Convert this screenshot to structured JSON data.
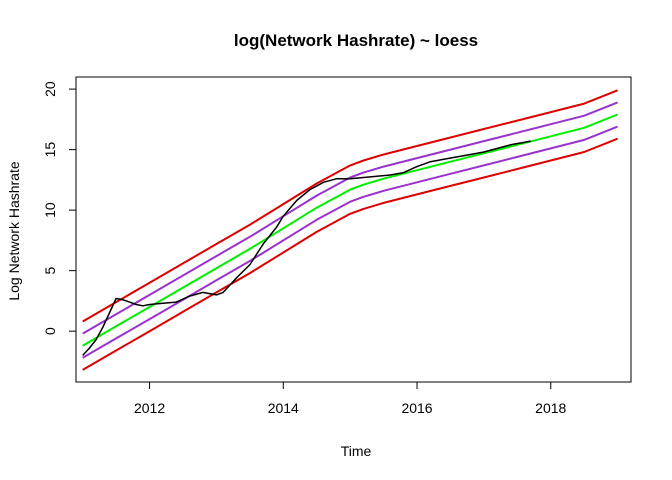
{
  "chart_data": {
    "type": "line",
    "title": "log(Network Hashrate) ~ loess",
    "xlabel": "Time",
    "ylabel": "Log Network Hashrate",
    "xlim": [
      2010.9,
      2019.2
    ],
    "ylim": [
      -4.2,
      21.0
    ],
    "xticks": [
      2012,
      2014,
      2016,
      2018
    ],
    "yticks": [
      0,
      5,
      10,
      15,
      20
    ],
    "grid": false,
    "legend": "none",
    "colors": {
      "observed": "#000000",
      "fit": "#00ee00",
      "inner_band": "#9a32cd",
      "outer_band": "#dd0000"
    },
    "x": [
      2011.0,
      2011.5,
      2012.0,
      2012.5,
      2013.0,
      2013.5,
      2014.0,
      2014.5,
      2015.0,
      2015.2,
      2015.5,
      2016.0,
      2016.5,
      2017.0,
      2017.5,
      2018.0,
      2018.5,
      2019.0
    ],
    "series": [
      {
        "role": "outer_upper",
        "values": [
          0.8,
          2.4,
          4.0,
          5.6,
          7.2,
          8.8,
          10.5,
          12.2,
          13.7,
          14.1,
          14.6,
          15.3,
          16.0,
          16.7,
          17.4,
          18.1,
          18.8,
          19.9
        ]
      },
      {
        "role": "inner_upper",
        "values": [
          -0.2,
          1.4,
          3.0,
          4.6,
          6.2,
          7.8,
          9.5,
          11.2,
          12.7,
          13.1,
          13.6,
          14.3,
          15.0,
          15.7,
          16.4,
          17.1,
          17.8,
          18.9
        ]
      },
      {
        "role": "fit",
        "values": [
          -1.2,
          0.4,
          2.0,
          3.6,
          5.2,
          6.8,
          8.5,
          10.2,
          11.7,
          12.1,
          12.6,
          13.3,
          14.0,
          14.7,
          15.4,
          16.1,
          16.8,
          17.9
        ]
      },
      {
        "role": "inner_lower",
        "values": [
          -2.2,
          -0.6,
          1.0,
          2.6,
          4.2,
          5.8,
          7.5,
          9.2,
          10.7,
          11.1,
          11.6,
          12.3,
          13.0,
          13.7,
          14.4,
          15.1,
          15.8,
          16.9
        ]
      },
      {
        "role": "outer_lower",
        "values": [
          -3.2,
          -1.6,
          0.0,
          1.6,
          3.2,
          4.8,
          6.5,
          8.2,
          9.7,
          10.1,
          10.6,
          11.3,
          12.0,
          12.7,
          13.4,
          14.1,
          14.8,
          15.9
        ]
      }
    ],
    "observed": {
      "x": [
        2011.0,
        2011.1,
        2011.2,
        2011.3,
        2011.4,
        2011.5,
        2011.6,
        2011.7,
        2011.8,
        2011.9,
        2012.0,
        2012.2,
        2012.4,
        2012.6,
        2012.8,
        2013.0,
        2013.1,
        2013.2,
        2013.3,
        2013.5,
        2013.7,
        2013.9,
        2014.0,
        2014.2,
        2014.4,
        2014.6,
        2014.8,
        2015.0,
        2015.2,
        2015.4,
        2015.6,
        2015.8,
        2016.0,
        2016.2,
        2016.4,
        2016.6,
        2016.8,
        2017.0,
        2017.2,
        2017.4,
        2017.6,
        2017.7
      ],
      "y": [
        -2.0,
        -1.4,
        -0.7,
        0.3,
        1.5,
        2.7,
        2.6,
        2.4,
        2.2,
        2.1,
        2.2,
        2.3,
        2.4,
        2.9,
        3.2,
        3.0,
        3.2,
        3.8,
        4.4,
        5.5,
        7.2,
        8.6,
        9.5,
        10.8,
        11.7,
        12.3,
        12.6,
        12.6,
        12.7,
        12.8,
        12.9,
        13.1,
        13.6,
        14.0,
        14.2,
        14.4,
        14.6,
        14.8,
        15.1,
        15.4,
        15.6,
        15.7
      ]
    }
  }
}
